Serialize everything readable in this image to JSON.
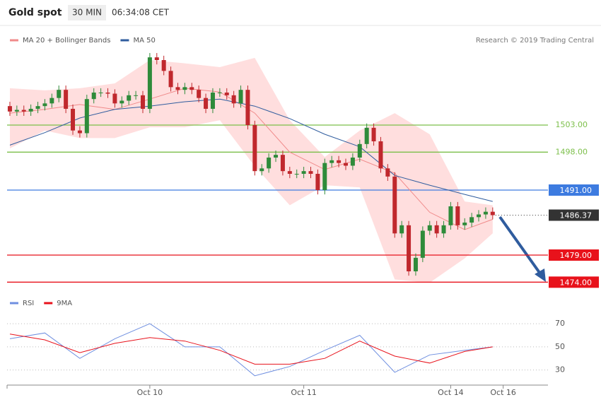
{
  "chart_data": {
    "type": "candlestick",
    "title": "Gold spot",
    "timeframe": "30 MIN",
    "time": "06:34:08 CET",
    "credit": "Research © 2019 Trading Central",
    "up_color": "#2e8b3a",
    "down_color": "#c0282d",
    "xlim": [
      -0.4,
      76.9
    ],
    "ylim": [
      1470,
      1521
    ],
    "xticks": [
      {
        "value": 20,
        "label": "Oct 10"
      },
      {
        "value": 42,
        "label": "Oct 11"
      },
      {
        "value": 63,
        "label": "Oct 14"
      },
      {
        "value": 70.5,
        "label": "Oct 16"
      }
    ],
    "open": [
      1506.5,
      1505.5,
      1505.8,
      1505.5,
      1506,
      1506.5,
      1507,
      1508,
      1509.5,
      1506,
      1502,
      1501.5,
      1507.8,
      1509,
      1509,
      1508.8,
      1507,
      1507.5,
      1508.5,
      1508.5,
      1506,
      1515.5,
      1515,
      1513,
      1510,
      1509.5,
      1510,
      1509.5,
      1508,
      1506,
      1509,
      1509,
      1508.5,
      1507,
      1509.5,
      1503,
      1494.5,
      1495,
      1497,
      1497.5,
      1494.5,
      1494,
      1494,
      1494.5,
      1494,
      1491,
      1496,
      1496.5,
      1496,
      1495.5,
      1497,
      1499.5,
      1502.5,
      1500,
      1495,
      1493.5,
      1483,
      1484.5,
      1476,
      1478.5,
      1483.5,
      1484.5,
      1483,
      1484.5,
      1488,
      1484.5,
      1485,
      1486,
      1486.5,
      1487
    ],
    "high": [
      1507.3,
      1506.6,
      1506.6,
      1506.8,
      1507.3,
      1507.8,
      1508.8,
      1510.3,
      1510.3,
      1506.8,
      1502.8,
      1508.6,
      1509.8,
      1509.8,
      1509.8,
      1509.6,
      1508.3,
      1509.3,
      1509.3,
      1509.3,
      1516.3,
      1516.3,
      1515.8,
      1513.8,
      1510.8,
      1510.8,
      1510.8,
      1510.3,
      1508.8,
      1509.8,
      1509.8,
      1509.8,
      1509.3,
      1510.3,
      1510.3,
      1503.8,
      1495.8,
      1497.8,
      1498.3,
      1498.3,
      1495.3,
      1494.8,
      1495.3,
      1495.3,
      1494.8,
      1496.8,
      1497.3,
      1497.3,
      1496.8,
      1497.8,
      1500.3,
      1503.3,
      1503.3,
      1500.8,
      1495.8,
      1494.3,
      1485.3,
      1485.3,
      1479.3,
      1484.3,
      1485.3,
      1485.3,
      1485.3,
      1488.8,
      1488.8,
      1485.8,
      1486.8,
      1487.3,
      1487.8,
      1487.8
    ],
    "low": [
      1504.7,
      1504.7,
      1504.7,
      1504.7,
      1505.2,
      1505.7,
      1506.2,
      1507.2,
      1505.2,
      1501.2,
      1500.7,
      1500.7,
      1507,
      1508.2,
      1508,
      1506.2,
      1506.2,
      1506.7,
      1507.7,
      1505.2,
      1505.2,
      1514.2,
      1512.2,
      1509.2,
      1508.7,
      1508.7,
      1508.7,
      1507.2,
      1505.2,
      1505.2,
      1508.2,
      1507.7,
      1506.2,
      1506.2,
      1502.2,
      1493.7,
      1493.7,
      1494.2,
      1496.2,
      1493.7,
      1493.2,
      1493.2,
      1493.2,
      1493.2,
      1490.2,
      1490.2,
      1495.2,
      1495.2,
      1494.7,
      1494.7,
      1496.2,
      1498.7,
      1499.2,
      1494.2,
      1492.7,
      1482.2,
      1482.2,
      1475.2,
      1475.2,
      1477.7,
      1482.7,
      1482.2,
      1482.2,
      1483.7,
      1483.7,
      1483.7,
      1484.2,
      1485.2,
      1485.7,
      1485.6
    ],
    "close": [
      1505.5,
      1505.8,
      1505.5,
      1506,
      1506.5,
      1507,
      1508,
      1509.5,
      1506,
      1502,
      1501.5,
      1507.8,
      1509,
      1509,
      1508.8,
      1507,
      1507.5,
      1508.5,
      1508.5,
      1506,
      1515.5,
      1515,
      1513,
      1510,
      1509.5,
      1510,
      1509.5,
      1508,
      1506,
      1509,
      1509,
      1508.5,
      1507,
      1509.5,
      1503,
      1494.5,
      1495,
      1497,
      1497.5,
      1494.5,
      1494,
      1494,
      1494.5,
      1494,
      1491,
      1496,
      1496.5,
      1496,
      1495.5,
      1497,
      1499.5,
      1502.5,
      1500,
      1495,
      1493.5,
      1483,
      1484.5,
      1476,
      1478.5,
      1483.5,
      1484.5,
      1483,
      1484.5,
      1488,
      1484.5,
      1485,
      1486,
      1486.5,
      1487,
      1486.37
    ],
    "overlays": [
      {
        "name": "MA 20 + Bollinger Bands",
        "color": "#f08a8a",
        "band_color": "#ffdede",
        "x": [
          0,
          5,
          10,
          15,
          20,
          25,
          30,
          35,
          40,
          45,
          50,
          55,
          60,
          65,
          69
        ],
        "values": [
          1505.2,
          1505.9,
          1506.8,
          1505.9,
          1507.8,
          1509.8,
          1509.1,
          1505.2,
          1498,
          1494.8,
          1496.7,
          1494.1,
          1486.9,
          1483.7,
          1485.6
        ],
        "upper": [
          1509.8,
          1509.4,
          1509.8,
          1510.7,
          1515,
          1514.4,
          1513.7,
          1515.4,
          1503.9,
          1497.1,
          1502,
          1505.2,
          1501.3,
          1488.9,
          1488.2
        ],
        "lower": [
          1498.7,
          1502,
          1500.6,
          1500.6,
          1502.6,
          1502.6,
          1503.9,
          1495.4,
          1488.2,
          1491.9,
          1491.5,
          1474.5,
          1473.9,
          1478.4,
          1483
        ]
      },
      {
        "name": "MA 50",
        "color": "#2f5c9e",
        "x": [
          0,
          5,
          10,
          15,
          20,
          25,
          30,
          35,
          40,
          45,
          50,
          55,
          60,
          65,
          69
        ],
        "values": [
          1499.3,
          1501.6,
          1504.3,
          1505.9,
          1506.5,
          1507.3,
          1507.8,
          1506.5,
          1504.2,
          1501.3,
          1499,
          1493.7,
          1491.9,
          1490.2,
          1488.9
        ]
      }
    ],
    "levels": [
      {
        "value": 1503,
        "label": "1503.00",
        "color": "#7cbf4a",
        "boxed": false,
        "line": "solid"
      },
      {
        "value": 1498,
        "label": "1498.00",
        "color": "#7cbf4a",
        "boxed": false,
        "line": "solid"
      },
      {
        "value": 1491,
        "label": "1491.00",
        "color": "#3d7be0",
        "boxed": true,
        "line": "solid"
      },
      {
        "value": 1486.37,
        "label": "1486.37",
        "color": "#333333",
        "boxed": true,
        "line": "dotted"
      },
      {
        "value": 1479,
        "label": "1479.00",
        "color": "#e8121b",
        "boxed": true,
        "line": "solid"
      },
      {
        "value": 1474,
        "label": "1474.00",
        "color": "#e8121b",
        "boxed": true,
        "line": "solid"
      }
    ],
    "rsi": {
      "ylim": [
        20,
        78
      ],
      "yticks": [
        70,
        50,
        30
      ],
      "series": [
        {
          "name": "RSI",
          "color": "#6f8fe0",
          "x": [
            0,
            5,
            10,
            15,
            20,
            25,
            30,
            35,
            40,
            45,
            50,
            55,
            60,
            65,
            69
          ],
          "values": [
            57,
            62,
            40,
            57,
            70,
            50,
            50,
            25,
            33,
            47,
            60,
            28,
            43,
            47,
            50
          ]
        },
        {
          "name": "9MA",
          "color": "#e8121b",
          "x": [
            0,
            5,
            10,
            15,
            20,
            25,
            30,
            35,
            40,
            45,
            50,
            55,
            60,
            65,
            69
          ],
          "values": [
            61,
            56,
            45,
            53,
            58,
            55,
            47,
            35,
            35,
            40,
            55,
            42,
            36,
            46,
            50
          ]
        }
      ]
    }
  }
}
